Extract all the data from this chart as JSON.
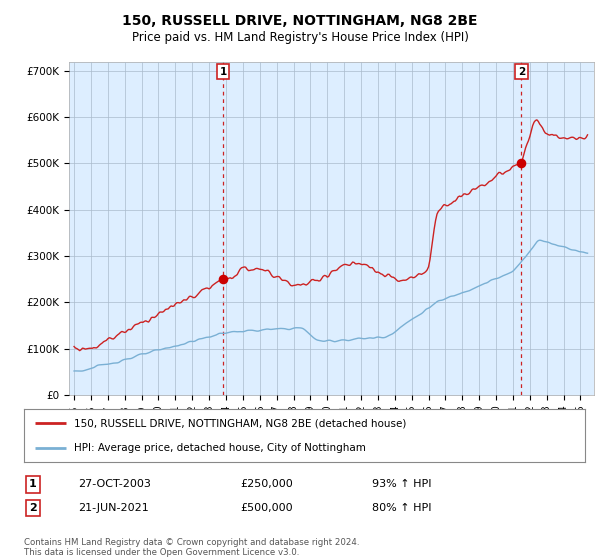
{
  "title": "150, RUSSELL DRIVE, NOTTINGHAM, NG8 2BE",
  "subtitle": "Price paid vs. HM Land Registry's House Price Index (HPI)",
  "ylabel_ticks": [
    "£0",
    "£100K",
    "£200K",
    "£300K",
    "£400K",
    "£500K",
    "£600K",
    "£700K"
  ],
  "ytick_values": [
    0,
    100000,
    200000,
    300000,
    400000,
    500000,
    600000,
    700000
  ],
  "ylim": [
    0,
    720000
  ],
  "xlim_min": 1994.7,
  "xlim_max": 2025.8,
  "sale1_year": 2003.83,
  "sale1_price": 250000,
  "sale1_date": "27-OCT-2003",
  "sale1_hpi_pct": "93% ↑ HPI",
  "sale2_year": 2021.5,
  "sale2_price": 500000,
  "sale2_date": "21-JUN-2021",
  "sale2_hpi_pct": "80% ↑ HPI",
  "legend_line1": "150, RUSSELL DRIVE, NOTTINGHAM, NG8 2BE (detached house)",
  "legend_line2": "HPI: Average price, detached house, City of Nottingham",
  "footnote": "Contains HM Land Registry data © Crown copyright and database right 2024.\nThis data is licensed under the Open Government Licence v3.0.",
  "line_color_red": "#cc2222",
  "line_color_blue": "#7ab0d4",
  "bg_fill_color": "#ddeeff",
  "background_color": "#ffffff",
  "grid_color": "#aabbcc",
  "sale_marker_color": "#cc0000",
  "sale_vline_color": "#cc2222"
}
